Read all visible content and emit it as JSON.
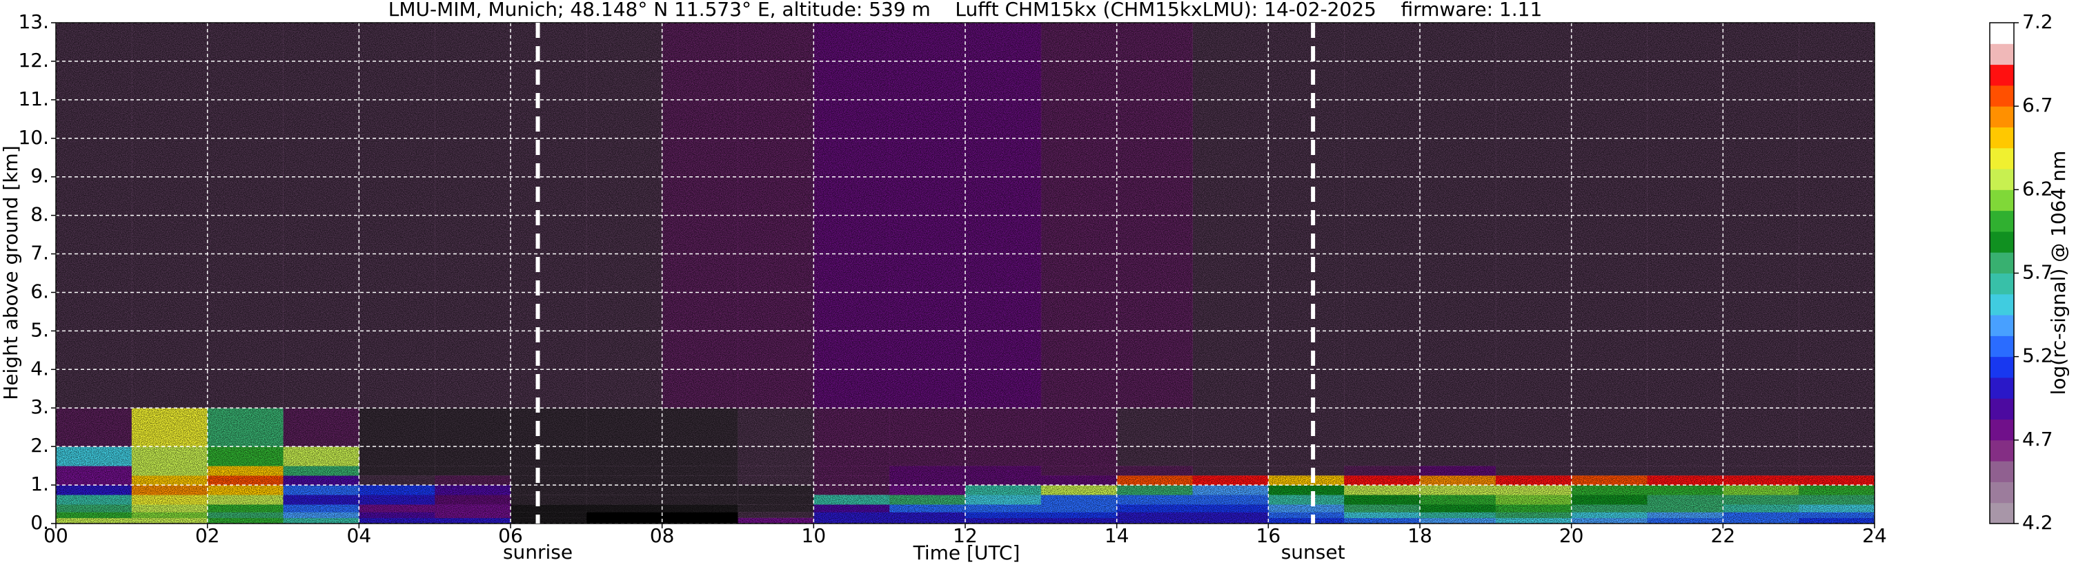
{
  "chart_data": {
    "type": "heatmap",
    "title": "LMU-MIM, Munich; 48.148° N 11.573° E, altitude: 539 m    Lufft CHM15kx (CHM15kxLMU): 14-02-2025    firmware: 1.11",
    "xlabel": "Time [UTC]",
    "ylabel": "Height above ground [km]",
    "colorbar_label": "log(rc-signal) @ 1064 nm",
    "xlim": [
      0,
      24
    ],
    "ylim": [
      0,
      13
    ],
    "xticks": [
      {
        "value": 0,
        "label": "00"
      },
      {
        "value": 2,
        "label": "02"
      },
      {
        "value": 4,
        "label": "04"
      },
      {
        "value": 6,
        "label": "06"
      },
      {
        "value": 8,
        "label": "08"
      },
      {
        "value": 10,
        "label": "10"
      },
      {
        "value": 12,
        "label": "12"
      },
      {
        "value": 14,
        "label": "14"
      },
      {
        "value": 16,
        "label": "16"
      },
      {
        "value": 18,
        "label": "18"
      },
      {
        "value": 20,
        "label": "20"
      },
      {
        "value": 22,
        "label": "22"
      },
      {
        "value": 24,
        "label": "24"
      }
    ],
    "yticks": [
      {
        "value": 0,
        "label": "0."
      },
      {
        "value": 1,
        "label": "1."
      },
      {
        "value": 2,
        "label": "2."
      },
      {
        "value": 3,
        "label": "3."
      },
      {
        "value": 4,
        "label": "4."
      },
      {
        "value": 5,
        "label": "5."
      },
      {
        "value": 6,
        "label": "6."
      },
      {
        "value": 7,
        "label": "7."
      },
      {
        "value": 8,
        "label": "8."
      },
      {
        "value": 9,
        "label": "9."
      },
      {
        "value": 10,
        "label": "10."
      },
      {
        "value": 11,
        "label": "11."
      },
      {
        "value": 12,
        "label": "12."
      },
      {
        "value": 13,
        "label": "13."
      }
    ],
    "grid": true,
    "x_edges": [
      0,
      1,
      2,
      3,
      4,
      5,
      6,
      7,
      8,
      9,
      10,
      11,
      12,
      13,
      14,
      15,
      16,
      17,
      18,
      19,
      20,
      21,
      22,
      23,
      24
    ],
    "y_edges": [
      0,
      0.15,
      0.3,
      0.5,
      0.75,
      1,
      1.25,
      1.5,
      2,
      3,
      13
    ],
    "z": [
      [
        6.3,
        6.2,
        6.0,
        5.6,
        5.0,
        5.0,
        4.3,
        4.2,
        4.2,
        4.8,
        5.0,
        5.0,
        5.0,
        5.0,
        5.0,
        5.0,
        5.1,
        5.3,
        5.4,
        5.5,
        5.4,
        5.3,
        5.2,
        5.1
      ],
      [
        6.0,
        6.1,
        5.8,
        5.4,
        4.9,
        4.8,
        4.3,
        4.2,
        4.2,
        4.5,
        5.0,
        5.0,
        5.1,
        5.1,
        5.0,
        5.0,
        5.2,
        5.5,
        5.6,
        5.7,
        5.5,
        5.4,
        5.3,
        5.2
      ],
      [
        5.8,
        6.3,
        6.0,
        5.2,
        4.8,
        4.8,
        4.3,
        4.3,
        4.3,
        4.4,
        4.9,
        5.2,
        5.2,
        5.2,
        5.1,
        5.1,
        5.4,
        5.8,
        5.9,
        6.0,
        5.8,
        5.7,
        5.6,
        5.5
      ],
      [
        5.6,
        6.4,
        6.2,
        5.0,
        5.0,
        4.7,
        4.4,
        4.4,
        4.4,
        4.4,
        5.6,
        5.8,
        5.5,
        5.3,
        5.2,
        5.2,
        5.6,
        5.9,
        6.0,
        6.1,
        5.9,
        5.8,
        5.8,
        5.7
      ],
      [
        5.0,
        6.6,
        6.5,
        5.2,
        5.1,
        4.9,
        4.4,
        4.4,
        4.4,
        4.4,
        4.6,
        4.8,
        5.6,
        6.3,
        5.7,
        5.4,
        5.9,
        6.2,
        6.3,
        6.2,
        6.0,
        6.0,
        6.1,
        6.0
      ],
      [
        4.8,
        6.5,
        6.7,
        4.9,
        4.5,
        4.6,
        4.4,
        4.4,
        4.4,
        4.5,
        4.6,
        4.7,
        4.7,
        4.7,
        6.8,
        6.9,
        6.5,
        6.9,
        6.6,
        6.9,
        6.8,
        6.9,
        6.9,
        6.9
      ],
      [
        4.8,
        6.3,
        6.5,
        5.8,
        4.4,
        4.4,
        4.4,
        4.4,
        4.4,
        4.5,
        4.6,
        4.7,
        4.7,
        4.6,
        4.6,
        4.5,
        4.5,
        4.6,
        4.7,
        4.5,
        4.5,
        4.5,
        4.5,
        4.5
      ],
      [
        5.5,
        6.2,
        6.0,
        6.2,
        4.4,
        4.4,
        4.4,
        4.4,
        4.4,
        4.5,
        4.6,
        4.6,
        4.6,
        4.6,
        4.5,
        4.5,
        4.5,
        4.5,
        4.5,
        4.5,
        4.5,
        4.5,
        4.5,
        4.5
      ],
      [
        4.6,
        6.4,
        5.8,
        4.6,
        4.4,
        4.4,
        4.4,
        4.4,
        4.4,
        4.5,
        4.6,
        4.6,
        4.6,
        4.6,
        4.5,
        4.5,
        4.5,
        4.5,
        4.5,
        4.5,
        4.5,
        4.5,
        4.5,
        4.5
      ],
      [
        4.5,
        4.5,
        4.5,
        4.5,
        4.5,
        4.5,
        4.5,
        4.5,
        4.6,
        4.6,
        4.7,
        4.7,
        4.7,
        4.6,
        4.6,
        4.5,
        4.5,
        4.5,
        4.5,
        4.5,
        4.5,
        4.5,
        4.5,
        4.5
      ]
    ],
    "clim": [
      4.2,
      7.2
    ],
    "cticks": [
      4.2,
      4.7,
      5.2,
      5.7,
      6.2,
      6.7,
      7.2
    ],
    "colors": [
      "#a896a8",
      "#9c7c9c",
      "#906090",
      "#842e84",
      "#70108a",
      "#4c0aa0",
      "#2a18c8",
      "#1838f0",
      "#2a6cff",
      "#48a0ff",
      "#40cce0",
      "#38c0a8",
      "#38b070",
      "#109020",
      "#30b030",
      "#80d838",
      "#c8f050",
      "#f0f030",
      "#ffc800",
      "#ff9000",
      "#ff5000",
      "#ff1010",
      "#f0b8b8",
      "#ffffff"
    ],
    "annotations": [
      {
        "x": 6.36,
        "label": "sunrise"
      },
      {
        "x": 16.59,
        "label": "sunset"
      }
    ]
  }
}
